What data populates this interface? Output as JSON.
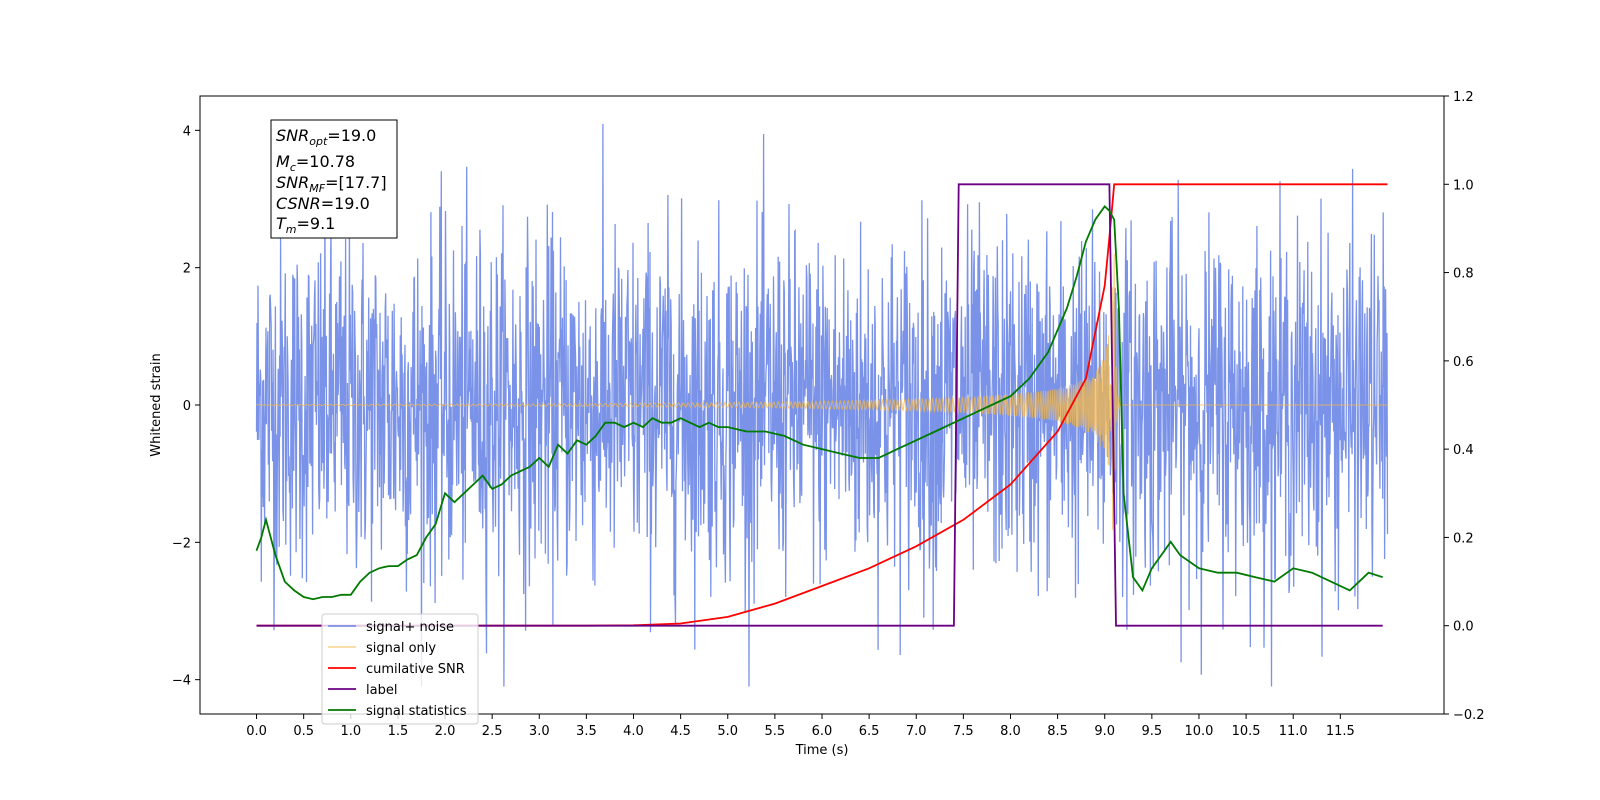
{
  "chart_data": {
    "type": "line",
    "xlabel": "Time (s)",
    "ylabel_left": "Whitened strain",
    "ylabel_right": "",
    "xlim": [
      -0.6,
      12.6
    ],
    "ylim_left": [
      -4.5,
      4.5
    ],
    "ylim_right": [
      -0.2,
      1.2
    ],
    "xticks": [
      "0.0",
      "0.5",
      "1.0",
      "1.5",
      "2.0",
      "2.5",
      "3.0",
      "3.5",
      "4.0",
      "4.5",
      "5.0",
      "5.5",
      "6.0",
      "6.5",
      "7.0",
      "7.5",
      "8.0",
      "8.5",
      "9.0",
      "9.5",
      "10.0",
      "10.5",
      "11.0",
      "11.5"
    ],
    "yticks_left": [
      "-4",
      "-2",
      "0",
      "2",
      "4"
    ],
    "yticks_right": [
      "-0.2",
      "0.0",
      "0.2",
      "0.4",
      "0.6",
      "0.8",
      "1.0",
      "1.2"
    ],
    "grid": false,
    "legend_position": "lower-left",
    "info_box": {
      "snr_opt": "=19.0",
      "mc": "=10.78",
      "snr_mf": "=[17.7]",
      "csnr": "=19.0",
      "tm": "=9.1"
    },
    "series": [
      {
        "name": "signal+ noise",
        "color": "#7a93e8",
        "axis": "left",
        "kind": "noise",
        "amplitude_range": [
          -4.1,
          4.1
        ],
        "x_range": [
          0.0,
          12.0
        ]
      },
      {
        "name": "signal only",
        "color": "#f5b84a",
        "axis": "left",
        "kind": "chirp",
        "peak_amplitude": 2.2,
        "merger_time": 9.1,
        "x_range": [
          0.0,
          12.0
        ]
      },
      {
        "name": "cumilative SNR",
        "color": "#ff0000",
        "axis": "right",
        "x": [
          0.0,
          3.5,
          4.0,
          4.5,
          5.0,
          5.5,
          6.0,
          6.5,
          7.0,
          7.5,
          8.0,
          8.5,
          8.8,
          9.0,
          9.05,
          9.1,
          12.0
        ],
        "y": [
          0.0,
          0.0,
          0.001,
          0.005,
          0.02,
          0.05,
          0.09,
          0.13,
          0.18,
          0.24,
          0.32,
          0.44,
          0.56,
          0.77,
          0.88,
          1.0,
          1.0
        ]
      },
      {
        "name": "label",
        "color": "#6a0082",
        "axis": "right",
        "x": [
          0.0,
          7.4,
          7.45,
          9.05,
          9.12,
          11.95
        ],
        "y": [
          0.0,
          0.0,
          1.0,
          1.0,
          0.0,
          0.0
        ]
      },
      {
        "name": "signal statistics",
        "color": "#007a00",
        "axis": "right",
        "x": [
          0.0,
          0.05,
          0.1,
          0.2,
          0.3,
          0.4,
          0.5,
          0.6,
          0.7,
          0.8,
          0.9,
          1.0,
          1.1,
          1.2,
          1.3,
          1.4,
          1.5,
          1.6,
          1.7,
          1.8,
          1.9,
          2.0,
          2.1,
          2.2,
          2.3,
          2.4,
          2.5,
          2.6,
          2.7,
          2.8,
          2.9,
          3.0,
          3.1,
          3.2,
          3.3,
          3.4,
          3.5,
          3.6,
          3.7,
          3.8,
          3.9,
          4.0,
          4.1,
          4.2,
          4.3,
          4.4,
          4.5,
          4.6,
          4.7,
          4.8,
          4.9,
          5.0,
          5.2,
          5.4,
          5.6,
          5.8,
          6.0,
          6.2,
          6.4,
          6.6,
          6.8,
          7.0,
          7.2,
          7.4,
          7.6,
          7.8,
          8.0,
          8.2,
          8.4,
          8.5,
          8.6,
          8.7,
          8.8,
          8.9,
          9.0,
          9.05,
          9.1,
          9.15,
          9.2,
          9.3,
          9.4,
          9.5,
          9.6,
          9.7,
          9.8,
          10.0,
          10.2,
          10.4,
          10.6,
          10.8,
          11.0,
          11.2,
          11.4,
          11.6,
          11.8,
          11.95
        ],
        "y": [
          0.17,
          0.2,
          0.24,
          0.16,
          0.1,
          0.08,
          0.065,
          0.06,
          0.065,
          0.065,
          0.07,
          0.07,
          0.1,
          0.12,
          0.13,
          0.135,
          0.135,
          0.15,
          0.16,
          0.2,
          0.23,
          0.3,
          0.28,
          0.3,
          0.32,
          0.34,
          0.31,
          0.32,
          0.34,
          0.35,
          0.36,
          0.38,
          0.36,
          0.41,
          0.39,
          0.42,
          0.41,
          0.43,
          0.46,
          0.46,
          0.45,
          0.46,
          0.45,
          0.47,
          0.46,
          0.46,
          0.47,
          0.46,
          0.45,
          0.46,
          0.45,
          0.45,
          0.44,
          0.44,
          0.43,
          0.41,
          0.4,
          0.39,
          0.38,
          0.38,
          0.4,
          0.42,
          0.44,
          0.46,
          0.48,
          0.5,
          0.52,
          0.56,
          0.62,
          0.67,
          0.72,
          0.79,
          0.87,
          0.92,
          0.95,
          0.94,
          0.92,
          0.72,
          0.3,
          0.11,
          0.08,
          0.13,
          0.16,
          0.19,
          0.16,
          0.13,
          0.12,
          0.12,
          0.11,
          0.1,
          0.13,
          0.12,
          0.1,
          0.08,
          0.12,
          0.11
        ]
      }
    ]
  }
}
